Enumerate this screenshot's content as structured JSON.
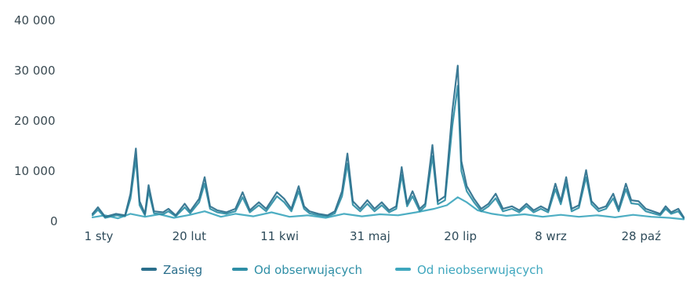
{
  "chart_data": {
    "type": "line",
    "title": "",
    "xlabel": "",
    "ylabel": "",
    "ylim": [
      0,
      40000
    ],
    "yticks": [
      {
        "value": 0,
        "label": "0"
      },
      {
        "value": 10000,
        "label": "10 000"
      },
      {
        "value": 20000,
        "label": "20 000"
      },
      {
        "value": 30000,
        "label": "30 000"
      },
      {
        "value": 40000,
        "label": "40 000"
      }
    ],
    "xticks": [
      {
        "day": 1,
        "label": "1 sty"
      },
      {
        "day": 51,
        "label": "20 lut"
      },
      {
        "day": 101,
        "label": "11 kwi"
      },
      {
        "day": 151,
        "label": "31 maj"
      },
      {
        "day": 201,
        "label": "20 lip"
      },
      {
        "day": 251,
        "label": "8 wrz"
      },
      {
        "day": 301,
        "label": "28 paź"
      }
    ],
    "grid": false,
    "legend_position": "bottom",
    "series": [
      {
        "name": "Zasięg",
        "color": "#2b6f8c",
        "points": [
          [
            1,
            1500
          ],
          [
            4,
            2800
          ],
          [
            8,
            900
          ],
          [
            14,
            1500
          ],
          [
            19,
            1200
          ],
          [
            22,
            5500
          ],
          [
            25,
            14500
          ],
          [
            27,
            4000
          ],
          [
            30,
            1500
          ],
          [
            32,
            7200
          ],
          [
            35,
            2000
          ],
          [
            40,
            1800
          ],
          [
            43,
            2500
          ],
          [
            47,
            1200
          ],
          [
            52,
            3500
          ],
          [
            55,
            2000
          ],
          [
            60,
            4500
          ],
          [
            63,
            8800
          ],
          [
            66,
            3000
          ],
          [
            70,
            2200
          ],
          [
            75,
            1800
          ],
          [
            80,
            2500
          ],
          [
            84,
            5800
          ],
          [
            88,
            2200
          ],
          [
            93,
            3800
          ],
          [
            97,
            2500
          ],
          [
            103,
            5800
          ],
          [
            107,
            4500
          ],
          [
            111,
            2500
          ],
          [
            115,
            7000
          ],
          [
            118,
            3000
          ],
          [
            121,
            2000
          ],
          [
            126,
            1500
          ],
          [
            131,
            1200
          ],
          [
            135,
            2000
          ],
          [
            139,
            6000
          ],
          [
            142,
            13500
          ],
          [
            145,
            4000
          ],
          [
            149,
            2500
          ],
          [
            153,
            4200
          ],
          [
            157,
            2500
          ],
          [
            161,
            3800
          ],
          [
            165,
            2200
          ],
          [
            169,
            3000
          ],
          [
            172,
            10800
          ],
          [
            175,
            3500
          ],
          [
            178,
            6000
          ],
          [
            182,
            2500
          ],
          [
            185,
            3500
          ],
          [
            189,
            15200
          ],
          [
            192,
            4000
          ],
          [
            196,
            5000
          ],
          [
            200,
            22000
          ],
          [
            203,
            31000
          ],
          [
            205,
            12000
          ],
          [
            208,
            7000
          ],
          [
            212,
            4500
          ],
          [
            216,
            2500
          ],
          [
            220,
            3500
          ],
          [
            224,
            5500
          ],
          [
            228,
            2500
          ],
          [
            233,
            3000
          ],
          [
            237,
            2200
          ],
          [
            241,
            3500
          ],
          [
            245,
            2200
          ],
          [
            249,
            3000
          ],
          [
            253,
            2200
          ],
          [
            257,
            7500
          ],
          [
            260,
            4000
          ],
          [
            263,
            8800
          ],
          [
            266,
            2500
          ],
          [
            270,
            3200
          ],
          [
            274,
            10200
          ],
          [
            277,
            4000
          ],
          [
            281,
            2500
          ],
          [
            285,
            3000
          ],
          [
            289,
            5500
          ],
          [
            292,
            2500
          ],
          [
            296,
            7500
          ],
          [
            299,
            4200
          ],
          [
            303,
            4000
          ],
          [
            307,
            2500
          ],
          [
            311,
            2000
          ],
          [
            315,
            1500
          ],
          [
            318,
            3000
          ],
          [
            321,
            1800
          ],
          [
            325,
            2500
          ],
          [
            328,
            800
          ]
        ]
      },
      {
        "name": "Od obserwujących",
        "color": "#2f8fa6",
        "points": [
          [
            1,
            1200
          ],
          [
            4,
            2300
          ],
          [
            8,
            700
          ],
          [
            14,
            1200
          ],
          [
            19,
            1000
          ],
          [
            22,
            4500
          ],
          [
            25,
            12500
          ],
          [
            27,
            3200
          ],
          [
            30,
            1200
          ],
          [
            32,
            6000
          ],
          [
            35,
            1600
          ],
          [
            40,
            1400
          ],
          [
            43,
            2000
          ],
          [
            47,
            1000
          ],
          [
            52,
            2800
          ],
          [
            55,
            1600
          ],
          [
            60,
            3800
          ],
          [
            63,
            7500
          ],
          [
            66,
            2500
          ],
          [
            70,
            1800
          ],
          [
            75,
            1500
          ],
          [
            80,
            2000
          ],
          [
            84,
            4800
          ],
          [
            88,
            1800
          ],
          [
            93,
            3200
          ],
          [
            97,
            2000
          ],
          [
            103,
            5000
          ],
          [
            107,
            3800
          ],
          [
            111,
            2000
          ],
          [
            115,
            6000
          ],
          [
            118,
            2500
          ],
          [
            121,
            1600
          ],
          [
            126,
            1200
          ],
          [
            131,
            1000
          ],
          [
            135,
            1600
          ],
          [
            139,
            5000
          ],
          [
            142,
            11500
          ],
          [
            145,
            3300
          ],
          [
            149,
            2000
          ],
          [
            153,
            3500
          ],
          [
            157,
            2000
          ],
          [
            161,
            3200
          ],
          [
            165,
            1800
          ],
          [
            169,
            2500
          ],
          [
            172,
            9200
          ],
          [
            175,
            3000
          ],
          [
            178,
            5000
          ],
          [
            182,
            2000
          ],
          [
            185,
            3000
          ],
          [
            189,
            13000
          ],
          [
            192,
            3400
          ],
          [
            196,
            4200
          ],
          [
            200,
            19000
          ],
          [
            203,
            27000
          ],
          [
            205,
            10000
          ],
          [
            208,
            6000
          ],
          [
            212,
            3800
          ],
          [
            216,
            2000
          ],
          [
            220,
            3000
          ],
          [
            224,
            4600
          ],
          [
            228,
            2000
          ],
          [
            233,
            2500
          ],
          [
            237,
            1800
          ],
          [
            241,
            3000
          ],
          [
            245,
            1800
          ],
          [
            249,
            2500
          ],
          [
            253,
            1800
          ],
          [
            257,
            6400
          ],
          [
            260,
            3400
          ],
          [
            263,
            7600
          ],
          [
            266,
            2000
          ],
          [
            270,
            2700
          ],
          [
            274,
            8800
          ],
          [
            277,
            3400
          ],
          [
            281,
            2000
          ],
          [
            285,
            2500
          ],
          [
            289,
            4600
          ],
          [
            292,
            2000
          ],
          [
            296,
            6400
          ],
          [
            299,
            3600
          ],
          [
            303,
            3400
          ],
          [
            307,
            2000
          ],
          [
            311,
            1600
          ],
          [
            315,
            1200
          ],
          [
            318,
            2500
          ],
          [
            321,
            1500
          ],
          [
            325,
            2000
          ],
          [
            328,
            600
          ]
        ]
      },
      {
        "name": "Od nieobserwujących",
        "color": "#3fa7be",
        "points": [
          [
            1,
            800
          ],
          [
            8,
            1200
          ],
          [
            15,
            600
          ],
          [
            22,
            1500
          ],
          [
            30,
            900
          ],
          [
            38,
            1400
          ],
          [
            46,
            700
          ],
          [
            55,
            1300
          ],
          [
            63,
            2000
          ],
          [
            72,
            900
          ],
          [
            80,
            1500
          ],
          [
            90,
            1000
          ],
          [
            100,
            1800
          ],
          [
            110,
            900
          ],
          [
            120,
            1200
          ],
          [
            130,
            700
          ],
          [
            140,
            1500
          ],
          [
            150,
            1000
          ],
          [
            160,
            1400
          ],
          [
            170,
            1200
          ],
          [
            180,
            1800
          ],
          [
            190,
            2500
          ],
          [
            197,
            3200
          ],
          [
            203,
            4800
          ],
          [
            208,
            3800
          ],
          [
            214,
            2200
          ],
          [
            222,
            1500
          ],
          [
            230,
            1100
          ],
          [
            240,
            1400
          ],
          [
            250,
            900
          ],
          [
            260,
            1300
          ],
          [
            270,
            900
          ],
          [
            280,
            1200
          ],
          [
            290,
            800
          ],
          [
            300,
            1300
          ],
          [
            310,
            900
          ],
          [
            320,
            700
          ],
          [
            328,
            400
          ]
        ]
      }
    ]
  }
}
